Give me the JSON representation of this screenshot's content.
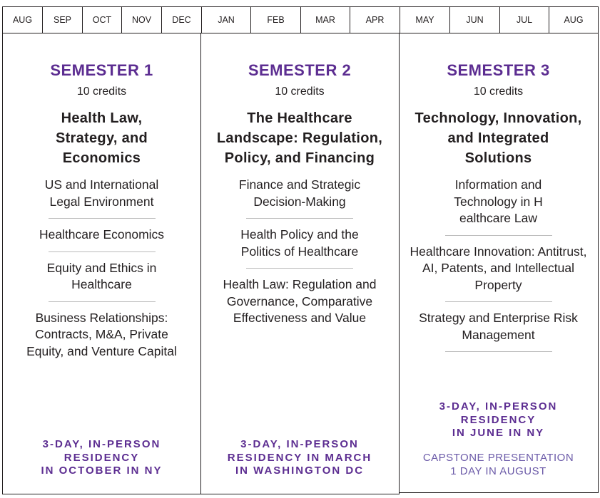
{
  "months": [
    "AUG",
    "SEP",
    "OCT",
    "NOV",
    "DEC",
    "JAN",
    "FEB",
    "MAR",
    "APR",
    "MAY",
    "JUN",
    "JUL",
    "AUG"
  ],
  "semesters": [
    {
      "title": "SEMESTER 1",
      "credits": "10 credits",
      "theme": "Health Law, Strategy, and Economics",
      "courses": [
        "US and International Legal Environment",
        "Healthcare Economics",
        "Equity and Ethics in Healthcare",
        "Business Relationships: Contracts, M&A, Private Equity, and Venture Capital"
      ],
      "residency": [
        "3-DAY, IN-PERSON",
        "RESIDENCY",
        "IN OCTOBER IN NY"
      ]
    },
    {
      "title": "SEMESTER 2",
      "credits": "10 credits",
      "theme": "The Healthcare Landscape: Regulation, Policy, and Financing",
      "courses": [
        "Finance and Strategic Decision-Making",
        "Health Policy and the Politics of Healthcare",
        "Health Law: Regulation and Governance, Comparative Effectiveness and Value"
      ],
      "residency": [
        "3-DAY, IN-PERSON",
        "RESIDENCY IN MARCH",
        "IN WASHINGTON DC"
      ]
    },
    {
      "title": "SEMESTER 3",
      "credits": "10 credits",
      "theme": "Technology, Innovation, and Integrated Solutions",
      "courses": [
        "Information and Technology in H ealthcare Law",
        "Healthcare Innovation: Antitrust, AI, Patents, and Intellectual Property",
        "Strategy and Enterprise Risk Management"
      ],
      "residency": [
        "3-DAY, IN-PERSON",
        "RESIDENCY",
        "IN JUNE IN NY"
      ],
      "capstone": [
        "CAPSTONE PRESENTATION",
        "1 DAY IN AUGUST"
      ]
    }
  ],
  "colors": {
    "accent": "#5c2d91",
    "capstone": "#6b5aa8",
    "border": "#231f20"
  }
}
